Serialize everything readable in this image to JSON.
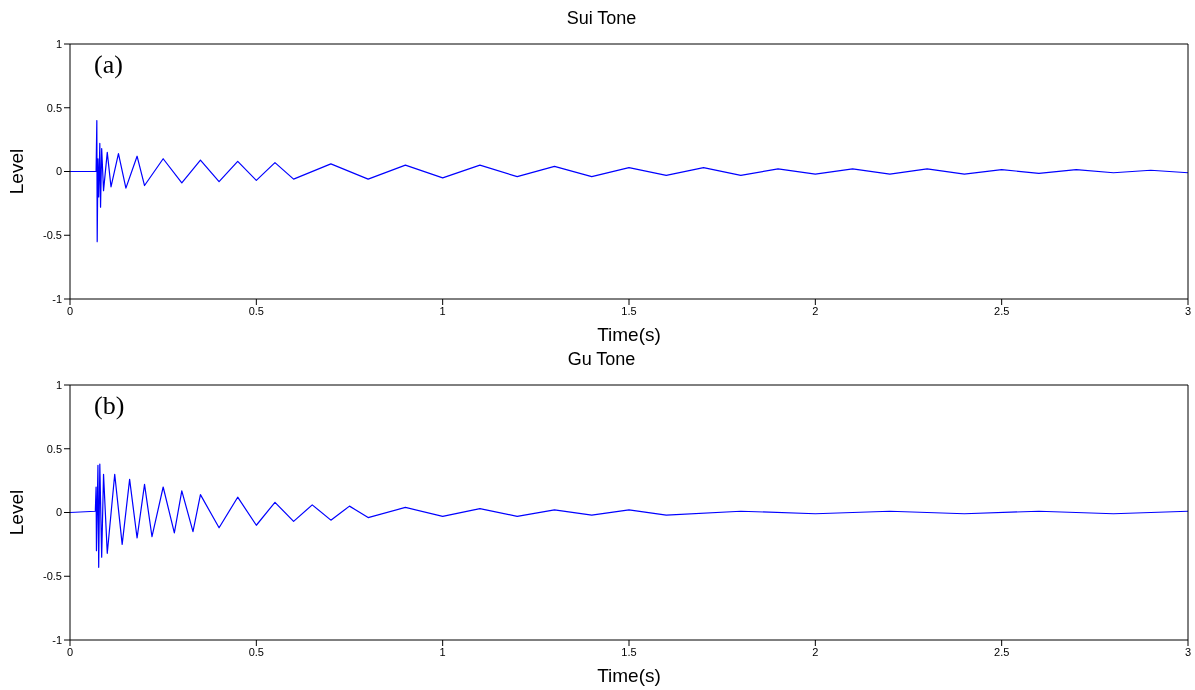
{
  "chart_data": [
    {
      "type": "line",
      "title": "Sui Tone",
      "xlabel": "Time(s)",
      "ylabel": "Level",
      "annotations": [
        "(a)"
      ],
      "xlim": [
        0,
        3
      ],
      "ylim": [
        -1,
        1
      ],
      "xticks": [
        0,
        0.5,
        1,
        1.5,
        2,
        2.5,
        3
      ],
      "yticks": [
        -1,
        -0.5,
        0,
        0.5,
        1
      ],
      "grid": false,
      "marker": "none",
      "line_style": "solid",
      "x": [
        0,
        0.07,
        0.072,
        0.073,
        0.075,
        0.077,
        0.08,
        0.082,
        0.085,
        0.09,
        0.1,
        0.11,
        0.13,
        0.15,
        0.18,
        0.2,
        0.25,
        0.3,
        0.35,
        0.4,
        0.45,
        0.5,
        0.55,
        0.6,
        0.7,
        0.8,
        0.9,
        1.0,
        1.1,
        1.2,
        1.3,
        1.4,
        1.5,
        1.6,
        1.7,
        1.8,
        1.9,
        2.0,
        2.1,
        2.2,
        2.3,
        2.4,
        2.5,
        2.6,
        2.7,
        2.8,
        2.9,
        3.0
      ],
      "series": [
        {
          "color": "#0000ff",
          "values": [
            0,
            0,
            0.4,
            -0.55,
            0.1,
            -0.2,
            0.22,
            -0.28,
            0.18,
            -0.15,
            0.15,
            -0.12,
            0.14,
            -0.13,
            0.12,
            -0.11,
            0.1,
            -0.09,
            0.09,
            -0.08,
            0.08,
            -0.07,
            0.07,
            -0.06,
            0.06,
            -0.06,
            0.05,
            -0.05,
            0.05,
            -0.04,
            0.04,
            -0.04,
            0.03,
            -0.03,
            0.03,
            -0.03,
            0.02,
            -0.02,
            0.02,
            -0.02,
            0.02,
            -0.02,
            0.015,
            -0.015,
            0.015,
            -0.01,
            0.01,
            -0.01
          ]
        }
      ]
    },
    {
      "type": "line",
      "title": "Gu Tone",
      "xlabel": "Time(s)",
      "ylabel": "Level",
      "annotations": [
        "(b)"
      ],
      "xlim": [
        0,
        3
      ],
      "ylim": [
        -1,
        1
      ],
      "xticks": [
        0,
        0.5,
        1,
        1.5,
        2,
        2.5,
        3
      ],
      "yticks": [
        -1,
        -0.5,
        0,
        0.5,
        1
      ],
      "grid": false,
      "marker": "none",
      "line_style": "solid",
      "x": [
        0,
        0.068,
        0.07,
        0.071,
        0.075,
        0.077,
        0.08,
        0.085,
        0.09,
        0.1,
        0.12,
        0.14,
        0.16,
        0.18,
        0.2,
        0.22,
        0.25,
        0.28,
        0.3,
        0.33,
        0.35,
        0.4,
        0.45,
        0.5,
        0.55,
        0.6,
        0.65,
        0.7,
        0.75,
        0.8,
        0.9,
        1.0,
        1.1,
        1.2,
        1.3,
        1.4,
        1.5,
        1.6,
        1.8,
        2.0,
        2.2,
        2.4,
        2.6,
        2.8,
        3.0
      ],
      "series": [
        {
          "color": "#0000ff",
          "values": [
            0,
            0.01,
            0.2,
            -0.3,
            0.37,
            -0.43,
            0.38,
            -0.35,
            0.3,
            -0.32,
            0.3,
            -0.25,
            0.26,
            -0.2,
            0.22,
            -0.19,
            0.2,
            -0.16,
            0.17,
            -0.15,
            0.14,
            -0.12,
            0.12,
            -0.1,
            0.08,
            -0.07,
            0.06,
            -0.06,
            0.05,
            -0.04,
            0.04,
            -0.03,
            0.03,
            -0.03,
            0.02,
            -0.02,
            0.02,
            -0.02,
            0.01,
            -0.01,
            0.01,
            -0.01,
            0.01,
            -0.01,
            0.01
          ]
        }
      ]
    }
  ]
}
